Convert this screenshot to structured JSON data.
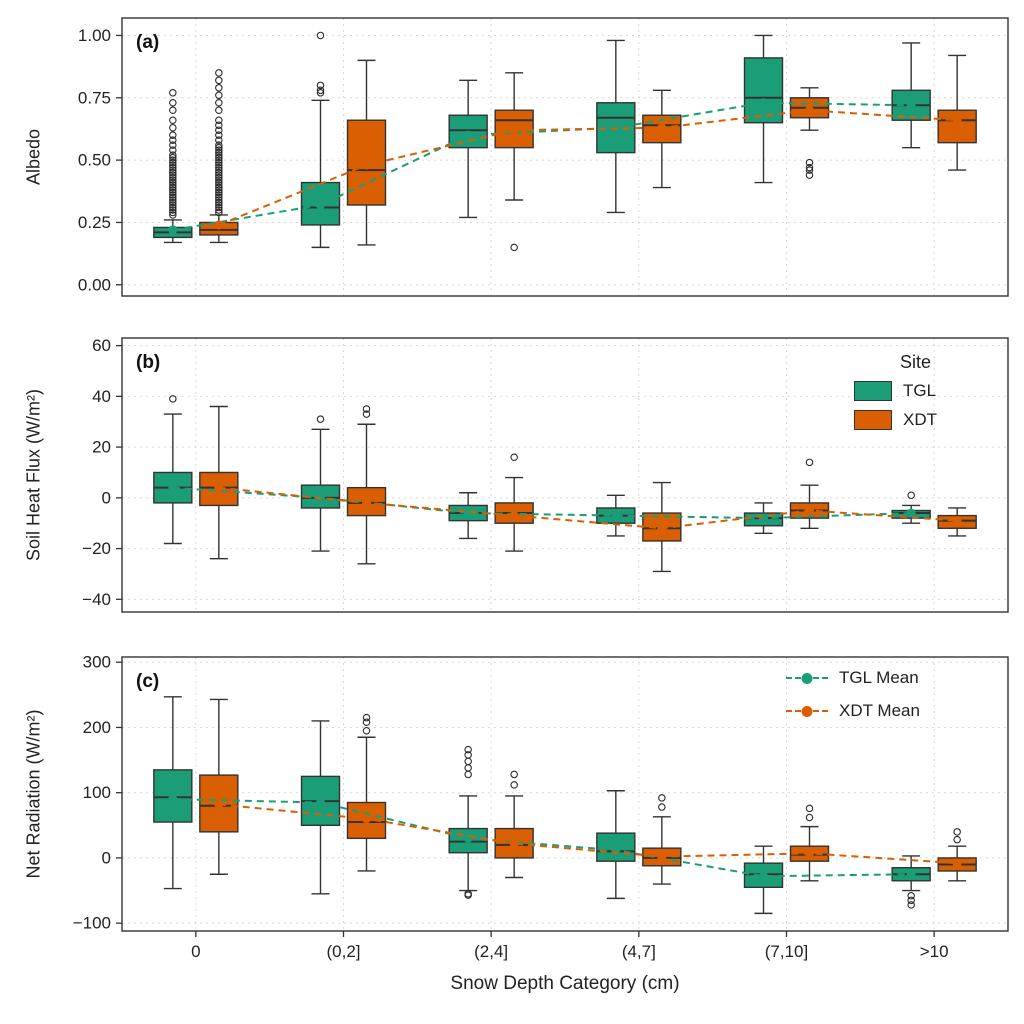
{
  "figure": {
    "xlabel": "Snow Depth Category (cm)",
    "panel_labels": {
      "a": "(a)",
      "b": "(b)",
      "c": "(c)"
    },
    "legend_site": {
      "title": "Site",
      "entries": [
        {
          "label": "TGL",
          "color": "#1b9e77"
        },
        {
          "label": "XDT",
          "color": "#d95f02"
        }
      ]
    },
    "legend_mean": {
      "entries": [
        {
          "label": "TGL Mean",
          "color": "#1b9e77"
        },
        {
          "label": "XDT Mean",
          "color": "#d95f02"
        }
      ]
    },
    "colors": {
      "tgl": "#1b9e77",
      "xdt": "#d95f02",
      "box_edge": "#333333",
      "grid": "#d8d8d8",
      "text": "#222222"
    }
  },
  "chart_data": [
    {
      "type": "box",
      "panel": "a",
      "ylabel": "Albedo",
      "ylim": [
        -0.045,
        1.07
      ],
      "yticks": [
        0.0,
        0.25,
        0.5,
        0.75,
        1.0
      ],
      "ytick_labels": [
        "0.00",
        "0.25",
        "0.50",
        "0.75",
        "1.00"
      ],
      "categories": [
        "0",
        "(0,2]",
        "(2,4]",
        "(4,7]",
        "(7,10]",
        ">10"
      ],
      "series": [
        {
          "name": "TGL",
          "color": "#1b9e77",
          "mean": [
            0.22,
            0.32,
            0.6,
            0.63,
            0.73,
            0.72
          ],
          "boxes": [
            {
              "q1": 0.19,
              "median": 0.21,
              "q3": 0.23,
              "whisker_low": 0.17,
              "whisker_high": 0.26,
              "outliers": [
                0.28,
                0.29,
                0.3,
                0.31,
                0.32,
                0.33,
                0.34,
                0.35,
                0.36,
                0.37,
                0.38,
                0.39,
                0.4,
                0.41,
                0.42,
                0.43,
                0.44,
                0.45,
                0.46,
                0.47,
                0.48,
                0.49,
                0.5,
                0.51,
                0.52,
                0.54,
                0.56,
                0.58,
                0.6,
                0.63,
                0.66,
                0.7,
                0.73,
                0.77
              ]
            },
            {
              "q1": 0.24,
              "median": 0.31,
              "q3": 0.41,
              "whisker_low": 0.15,
              "whisker_high": 0.74,
              "outliers": [
                0.77,
                0.78,
                0.8,
                1.0
              ]
            },
            {
              "q1": 0.55,
              "median": 0.62,
              "q3": 0.68,
              "whisker_low": 0.27,
              "whisker_high": 0.82,
              "outliers": []
            },
            {
              "q1": 0.53,
              "median": 0.67,
              "q3": 0.73,
              "whisker_low": 0.29,
              "whisker_high": 0.98,
              "outliers": []
            },
            {
              "q1": 0.65,
              "median": 0.75,
              "q3": 0.91,
              "whisker_low": 0.41,
              "whisker_high": 1.0,
              "outliers": []
            },
            {
              "q1": 0.66,
              "median": 0.72,
              "q3": 0.78,
              "whisker_low": 0.55,
              "whisker_high": 0.97,
              "outliers": []
            }
          ]
        },
        {
          "name": "XDT",
          "color": "#d95f02",
          "mean": [
            0.24,
            0.48,
            0.62,
            0.63,
            0.7,
            0.66
          ],
          "boxes": [
            {
              "q1": 0.2,
              "median": 0.22,
              "q3": 0.25,
              "whisker_low": 0.17,
              "whisker_high": 0.28,
              "outliers": [
                0.29,
                0.3,
                0.31,
                0.32,
                0.33,
                0.34,
                0.35,
                0.36,
                0.37,
                0.38,
                0.39,
                0.4,
                0.41,
                0.42,
                0.43,
                0.44,
                0.45,
                0.46,
                0.47,
                0.48,
                0.49,
                0.5,
                0.51,
                0.52,
                0.53,
                0.54,
                0.55,
                0.56,
                0.58,
                0.6,
                0.62,
                0.64,
                0.66,
                0.7,
                0.73,
                0.76,
                0.79,
                0.82,
                0.85
              ]
            },
            {
              "q1": 0.32,
              "median": 0.46,
              "q3": 0.66,
              "whisker_low": 0.16,
              "whisker_high": 0.9,
              "outliers": []
            },
            {
              "q1": 0.55,
              "median": 0.66,
              "q3": 0.7,
              "whisker_low": 0.34,
              "whisker_high": 0.85,
              "outliers": [
                0.15
              ]
            },
            {
              "q1": 0.57,
              "median": 0.64,
              "q3": 0.68,
              "whisker_low": 0.39,
              "whisker_high": 0.78,
              "outliers": []
            },
            {
              "q1": 0.67,
              "median": 0.71,
              "q3": 0.75,
              "whisker_low": 0.62,
              "whisker_high": 0.79,
              "outliers": [
                0.44,
                0.46,
                0.47,
                0.49
              ]
            },
            {
              "q1": 0.57,
              "median": 0.66,
              "q3": 0.7,
              "whisker_low": 0.46,
              "whisker_high": 0.92,
              "outliers": []
            }
          ]
        }
      ]
    },
    {
      "type": "box",
      "panel": "b",
      "ylabel": "Soil Heat Flux (W/m²)",
      "ylim": [
        -45,
        63
      ],
      "yticks": [
        -40,
        -20,
        0,
        20,
        40,
        60
      ],
      "ytick_labels": [
        "−40",
        "−20",
        "0",
        "20",
        "40",
        "60"
      ],
      "categories": [
        "0",
        "(0,2]",
        "(2,4]",
        "(4,7]",
        "(7,10]",
        ">10"
      ],
      "series": [
        {
          "name": "TGL",
          "color": "#1b9e77",
          "mean": [
            4,
            0,
            -6,
            -7,
            -8,
            -6
          ],
          "boxes": [
            {
              "q1": -2,
              "median": 4,
              "q3": 10,
              "whisker_low": -18,
              "whisker_high": 33,
              "outliers": [
                39
              ]
            },
            {
              "q1": -4,
              "median": 0,
              "q3": 5,
              "whisker_low": -21,
              "whisker_high": 27,
              "outliers": [
                31
              ]
            },
            {
              "q1": -9,
              "median": -6,
              "q3": -3,
              "whisker_low": -16,
              "whisker_high": 2,
              "outliers": []
            },
            {
              "q1": -10,
              "median": -7,
              "q3": -4,
              "whisker_low": -15,
              "whisker_high": 1,
              "outliers": []
            },
            {
              "q1": -11,
              "median": -8,
              "q3": -6,
              "whisker_low": -14,
              "whisker_high": -2,
              "outliers": []
            },
            {
              "q1": -8,
              "median": -6,
              "q3": -5,
              "whisker_low": -10,
              "whisker_high": -3,
              "outliers": [
                1
              ]
            }
          ]
        },
        {
          "name": "XDT",
          "color": "#d95f02",
          "mean": [
            4,
            -2,
            -7,
            -12,
            -5,
            -9
          ],
          "boxes": [
            {
              "q1": -3,
              "median": 4,
              "q3": 10,
              "whisker_low": -24,
              "whisker_high": 36,
              "outliers": []
            },
            {
              "q1": -7,
              "median": -2,
              "q3": 4,
              "whisker_low": -26,
              "whisker_high": 29,
              "outliers": [
                33,
                35
              ]
            },
            {
              "q1": -10,
              "median": -6,
              "q3": -2,
              "whisker_low": -21,
              "whisker_high": 8,
              "outliers": [
                16
              ]
            },
            {
              "q1": -17,
              "median": -12,
              "q3": -6,
              "whisker_low": -29,
              "whisker_high": 6,
              "outliers": []
            },
            {
              "q1": -8,
              "median": -5,
              "q3": -2,
              "whisker_low": -12,
              "whisker_high": 5,
              "outliers": [
                14
              ]
            },
            {
              "q1": -12,
              "median": -9,
              "q3": -7,
              "whisker_low": -15,
              "whisker_high": -4,
              "outliers": []
            }
          ]
        }
      ]
    },
    {
      "type": "box",
      "panel": "c",
      "ylabel": "Net Radiation (W/m²)",
      "ylim": [
        -112,
        308
      ],
      "yticks": [
        -100,
        0,
        100,
        200,
        300
      ],
      "ytick_labels": [
        "−100",
        "0",
        "100",
        "200",
        "300"
      ],
      "categories": [
        "0",
        "(0,2]",
        "(2,4]",
        "(4,7]",
        "(7,10]",
        ">10"
      ],
      "series": [
        {
          "name": "TGL",
          "color": "#1b9e77",
          "mean": [
            90,
            85,
            30,
            12,
            -28,
            -25
          ],
          "boxes": [
            {
              "q1": 55,
              "median": 93,
              "q3": 135,
              "whisker_low": -47,
              "whisker_high": 247,
              "outliers": []
            },
            {
              "q1": 50,
              "median": 87,
              "q3": 125,
              "whisker_low": -55,
              "whisker_high": 210,
              "outliers": []
            },
            {
              "q1": 8,
              "median": 25,
              "q3": 45,
              "whisker_low": -50,
              "whisker_high": 95,
              "outliers": [
                128,
                138,
                148,
                158,
                166,
                -55,
                -57
              ]
            },
            {
              "q1": -5,
              "median": 10,
              "q3": 38,
              "whisker_low": -62,
              "whisker_high": 103,
              "outliers": []
            },
            {
              "q1": -45,
              "median": -25,
              "q3": -8,
              "whisker_low": -85,
              "whisker_high": 18,
              "outliers": []
            },
            {
              "q1": -35,
              "median": -25,
              "q3": -15,
              "whisker_low": -50,
              "whisker_high": 3,
              "outliers": [
                -58,
                -65,
                -72
              ]
            }
          ]
        },
        {
          "name": "XDT",
          "color": "#d95f02",
          "mean": [
            82,
            60,
            22,
            2,
            7,
            -8
          ],
          "boxes": [
            {
              "q1": 40,
              "median": 80,
              "q3": 127,
              "whisker_low": -25,
              "whisker_high": 243,
              "outliers": []
            },
            {
              "q1": 30,
              "median": 55,
              "q3": 85,
              "whisker_low": -20,
              "whisker_high": 185,
              "outliers": [
                195,
                208,
                215
              ]
            },
            {
              "q1": 0,
              "median": 20,
              "q3": 45,
              "whisker_low": -30,
              "whisker_high": 95,
              "outliers": [
                112,
                128
              ]
            },
            {
              "q1": -12,
              "median": 0,
              "q3": 15,
              "whisker_low": -40,
              "whisker_high": 63,
              "outliers": [
                78,
                92
              ]
            },
            {
              "q1": -5,
              "median": 5,
              "q3": 18,
              "whisker_low": -35,
              "whisker_high": 48,
              "outliers": [
                62,
                76
              ]
            },
            {
              "q1": -20,
              "median": -10,
              "q3": 0,
              "whisker_low": -35,
              "whisker_high": 18,
              "outliers": [
                28,
                40
              ]
            }
          ]
        }
      ]
    }
  ]
}
